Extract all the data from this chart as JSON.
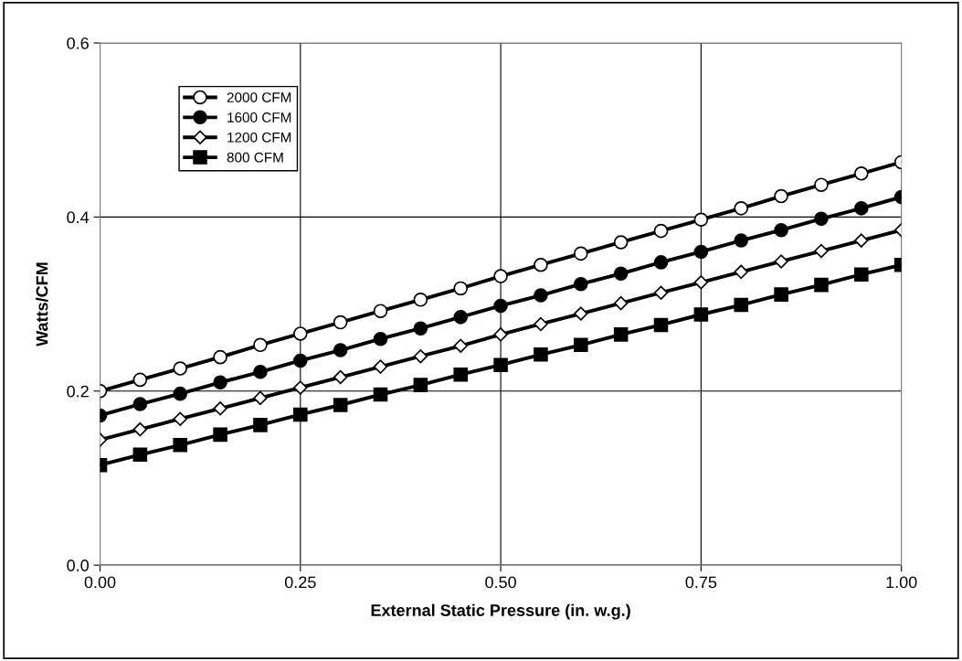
{
  "chart_data": {
    "type": "line",
    "xlabel": "External Static Pressure (in. w.g.)",
    "ylabel": "Watts/CFM",
    "x": [
      0,
      0.05,
      0.1,
      0.15,
      0.2,
      0.25,
      0.3,
      0.35,
      0.4,
      0.45,
      0.5,
      0.55,
      0.6,
      0.65,
      0.7,
      0.75,
      0.8,
      0.85,
      0.9,
      0.95,
      1.0
    ],
    "series": [
      {
        "name": "2000 CFM",
        "color": "#000000",
        "marker": "circle",
        "values": [
          0.2,
          0.213,
          0.226,
          0.239,
          0.253,
          0.266,
          0.279,
          0.292,
          0.305,
          0.318,
          0.332,
          0.345,
          0.358,
          0.371,
          0.384,
          0.397,
          0.41,
          0.424,
          0.437,
          0.45,
          0.463
        ]
      },
      {
        "name": "1600 CFM",
        "color": "#000000",
        "marker": "circle",
        "values": [
          0.172,
          0.185,
          0.197,
          0.21,
          0.222,
          0.235,
          0.247,
          0.26,
          0.272,
          0.285,
          0.298,
          0.31,
          0.323,
          0.335,
          0.348,
          0.36,
          0.373,
          0.385,
          0.398,
          0.41,
          0.423
        ]
      },
      {
        "name": "1200 CFM",
        "color": "#000000",
        "marker": "diamond",
        "values": [
          0.144,
          0.156,
          0.168,
          0.18,
          0.192,
          0.204,
          0.216,
          0.228,
          0.24,
          0.252,
          0.265,
          0.277,
          0.289,
          0.301,
          0.313,
          0.325,
          0.337,
          0.349,
          0.361,
          0.373,
          0.385
        ]
      },
      {
        "name": "800 CFM",
        "color": "#000000",
        "marker": "square",
        "values": [
          0.115,
          0.127,
          0.138,
          0.15,
          0.161,
          0.173,
          0.184,
          0.196,
          0.207,
          0.219,
          0.23,
          0.242,
          0.253,
          0.265,
          0.276,
          0.288,
          0.299,
          0.311,
          0.322,
          0.334,
          0.345
        ]
      }
    ],
    "xlim": [
      0,
      1
    ],
    "xticks": [
      {
        "value": 0,
        "label": "0.00"
      },
      {
        "value": 0.25,
        "label": "0.25"
      },
      {
        "value": 0.5,
        "label": "0.50"
      },
      {
        "value": 0.75,
        "label": "0.75"
      },
      {
        "value": 1,
        "label": "1.00"
      }
    ],
    "ylim": [
      0,
      0.6
    ],
    "yticks": [
      {
        "value": 0,
        "label": "0.0"
      },
      {
        "value": 0.2,
        "label": "0.2"
      },
      {
        "value": 0.4,
        "label": "0.4"
      },
      {
        "value": 0.6,
        "label": "0.6"
      }
    ],
    "grid": true,
    "legend": "top left",
    "line_style": "solid"
  }
}
